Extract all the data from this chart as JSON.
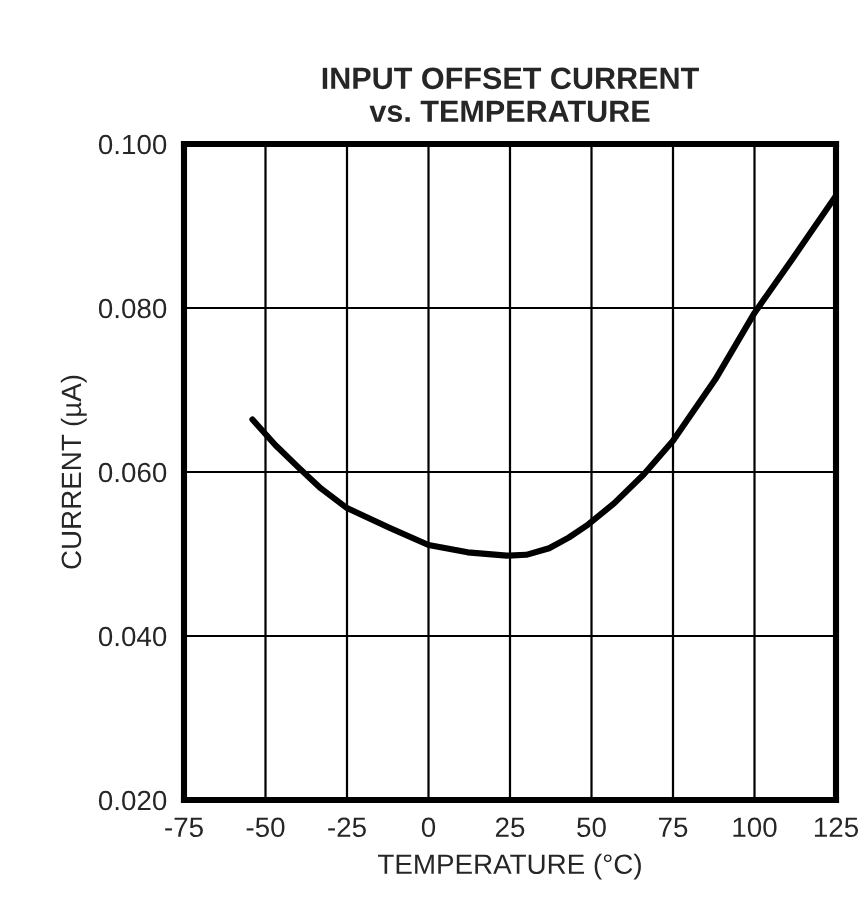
{
  "chart_data": {
    "type": "line",
    "title": "INPUT OFFSET CURRENT\nvs. TEMPERATURE",
    "xlabel": "TEMPERATURE (°C)",
    "ylabel": "CURRENT (µA)",
    "x": [
      -54,
      -47,
      -40,
      -33,
      -25,
      -12,
      0,
      12,
      24,
      30,
      37,
      43,
      49,
      57,
      66,
      75,
      88,
      100,
      112,
      125
    ],
    "series": [
      {
        "color": "#000000",
        "values": [
          0.0664,
          0.0633,
          0.0606,
          0.058,
          0.0556,
          0.0532,
          0.0511,
          0.0502,
          0.0498,
          0.0499,
          0.0507,
          0.052,
          0.0536,
          0.0562,
          0.0597,
          0.0638,
          0.0713,
          0.0794,
          0.0862,
          0.0937
        ]
      }
    ],
    "xlim": [
      -75,
      125
    ],
    "xticks": [
      -75,
      -50,
      -25,
      0,
      25,
      50,
      75,
      100,
      125
    ],
    "ylim": [
      0.02,
      0.1
    ],
    "yticks": [
      {
        "value": 0.02,
        "label": "0.020"
      },
      {
        "value": 0.04,
        "label": "0.040"
      },
      {
        "value": 0.06,
        "label": "0.060"
      },
      {
        "value": 0.08,
        "label": "0.080"
      },
      {
        "value": 0.1,
        "label": "0.100"
      }
    ],
    "grid": true,
    "line_style": "solid",
    "marker": "none",
    "legend": false
  }
}
